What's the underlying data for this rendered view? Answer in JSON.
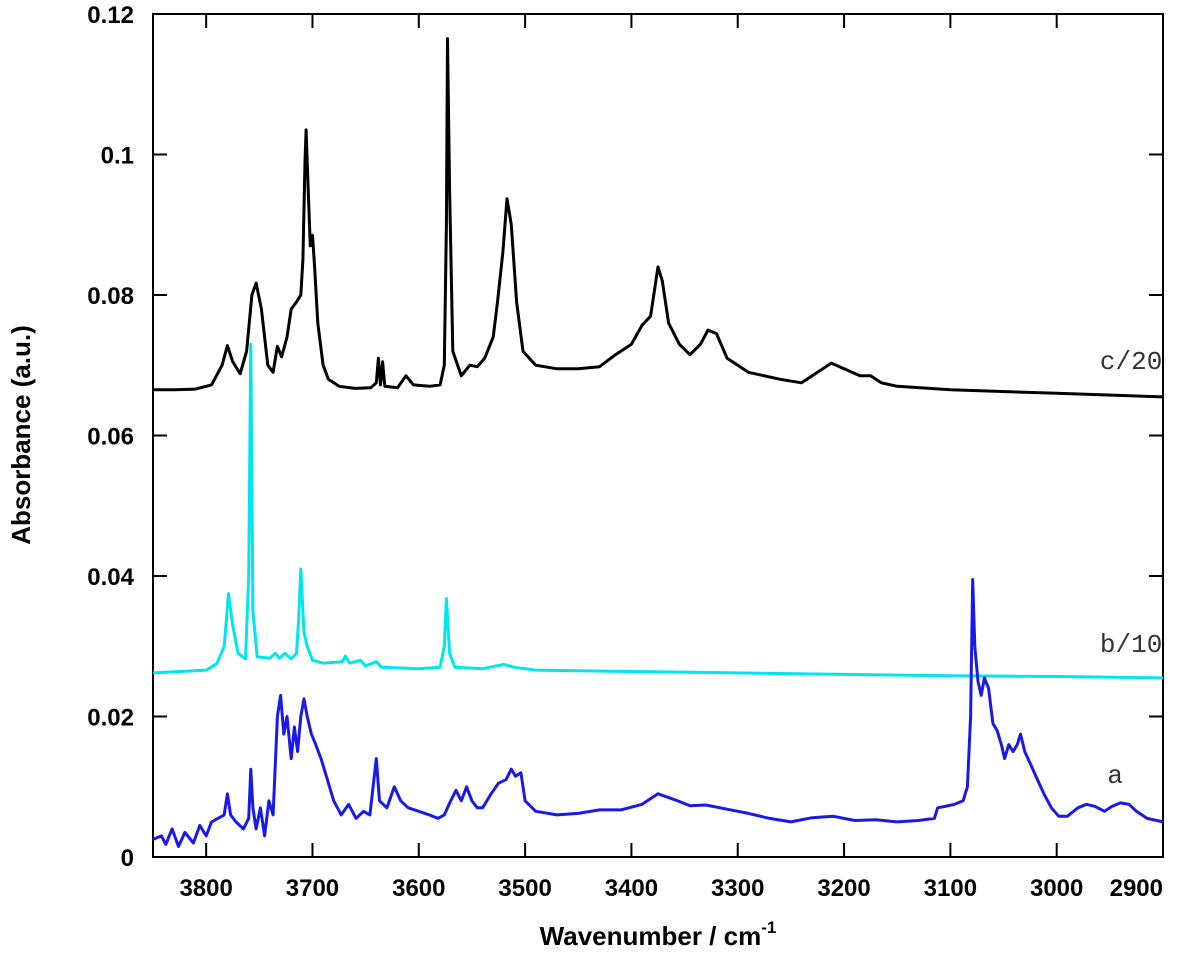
{
  "chart_data": {
    "type": "line",
    "xlabel": "Wavenumber / cm",
    "xlabel_superscript": "-1",
    "ylabel": "Absorbance (a.u.)",
    "xlim": [
      3850,
      2900
    ],
    "ylim": [
      0,
      0.12
    ],
    "x_reversed": true,
    "xticks": [
      3800,
      3700,
      3600,
      3500,
      3400,
      3300,
      3200,
      3100,
      3000,
      2900
    ],
    "xtick_labels": [
      "3800",
      "3700",
      "3600",
      "3500",
      "3400",
      "3300",
      "3200",
      "3100",
      "3000",
      "2900"
    ],
    "yticks": [
      0,
      0.02,
      0.04,
      0.06,
      0.08,
      0.1,
      0.12
    ],
    "ytick_labels": [
      "0",
      "0.02",
      "0.04",
      "0.06",
      "0.08",
      "0.1",
      "0.12"
    ],
    "grid": false,
    "series": [
      {
        "name": "c/20",
        "color": "#000000",
        "label_at": [
          2930,
          0.0695
        ],
        "points": [
          [
            3850,
            0.0665
          ],
          [
            3830,
            0.0665
          ],
          [
            3810,
            0.0666
          ],
          [
            3795,
            0.0672
          ],
          [
            3785,
            0.07
          ],
          [
            3780,
            0.0728
          ],
          [
            3775,
            0.0705
          ],
          [
            3768,
            0.0688
          ],
          [
            3762,
            0.072
          ],
          [
            3757,
            0.08
          ],
          [
            3753,
            0.0817
          ],
          [
            3748,
            0.078
          ],
          [
            3742,
            0.07
          ],
          [
            3737,
            0.069
          ],
          [
            3733,
            0.0727
          ],
          [
            3729,
            0.0712
          ],
          [
            3724,
            0.074
          ],
          [
            3720,
            0.078
          ],
          [
            3715,
            0.079
          ],
          [
            3711,
            0.08
          ],
          [
            3709,
            0.085
          ],
          [
            3707,
            0.099
          ],
          [
            3706,
            0.1035
          ],
          [
            3704,
            0.095
          ],
          [
            3702,
            0.087
          ],
          [
            3700,
            0.0885
          ],
          [
            3698,
            0.084
          ],
          [
            3695,
            0.076
          ],
          [
            3690,
            0.07
          ],
          [
            3685,
            0.068
          ],
          [
            3675,
            0.067
          ],
          [
            3660,
            0.0667
          ],
          [
            3645,
            0.0668
          ],
          [
            3640,
            0.0675
          ],
          [
            3638,
            0.071
          ],
          [
            3636,
            0.0672
          ],
          [
            3634,
            0.0705
          ],
          [
            3632,
            0.067
          ],
          [
            3620,
            0.0668
          ],
          [
            3612,
            0.0685
          ],
          [
            3605,
            0.0672
          ],
          [
            3590,
            0.067
          ],
          [
            3580,
            0.0672
          ],
          [
            3576,
            0.07
          ],
          [
            3574,
            0.09
          ],
          [
            3573,
            0.1165
          ],
          [
            3571,
            0.095
          ],
          [
            3568,
            0.072
          ],
          [
            3560,
            0.0685
          ],
          [
            3552,
            0.07
          ],
          [
            3545,
            0.0698
          ],
          [
            3538,
            0.071
          ],
          [
            3530,
            0.074
          ],
          [
            3526,
            0.079
          ],
          [
            3521,
            0.086
          ],
          [
            3517,
            0.0937
          ],
          [
            3513,
            0.09
          ],
          [
            3508,
            0.079
          ],
          [
            3502,
            0.072
          ],
          [
            3490,
            0.07
          ],
          [
            3470,
            0.0695
          ],
          [
            3450,
            0.0695
          ],
          [
            3430,
            0.0698
          ],
          [
            3415,
            0.0715
          ],
          [
            3400,
            0.073
          ],
          [
            3390,
            0.0757
          ],
          [
            3382,
            0.077
          ],
          [
            3375,
            0.084
          ],
          [
            3371,
            0.082
          ],
          [
            3365,
            0.076
          ],
          [
            3355,
            0.073
          ],
          [
            3345,
            0.0715
          ],
          [
            3335,
            0.073
          ],
          [
            3328,
            0.075
          ],
          [
            3320,
            0.0745
          ],
          [
            3310,
            0.071
          ],
          [
            3290,
            0.069
          ],
          [
            3260,
            0.068
          ],
          [
            3240,
            0.0675
          ],
          [
            3225,
            0.069
          ],
          [
            3212,
            0.0703
          ],
          [
            3200,
            0.0695
          ],
          [
            3185,
            0.0685
          ],
          [
            3175,
            0.0685
          ],
          [
            3165,
            0.0675
          ],
          [
            3150,
            0.067
          ],
          [
            3100,
            0.0665
          ],
          [
            3000,
            0.066
          ],
          [
            2900,
            0.0655
          ]
        ]
      },
      {
        "name": "b/10",
        "color": "#00e5ee",
        "label_at": [
          2930,
          0.0292
        ],
        "points": [
          [
            3850,
            0.0262
          ],
          [
            3800,
            0.0266
          ],
          [
            3790,
            0.0275
          ],
          [
            3783,
            0.03
          ],
          [
            3779,
            0.0375
          ],
          [
            3775,
            0.033
          ],
          [
            3770,
            0.029
          ],
          [
            3763,
            0.0282
          ],
          [
            3760,
            0.04
          ],
          [
            3758,
            0.073
          ],
          [
            3756,
            0.035
          ],
          [
            3752,
            0.0285
          ],
          [
            3740,
            0.0283
          ],
          [
            3735,
            0.029
          ],
          [
            3731,
            0.0283
          ],
          [
            3726,
            0.029
          ],
          [
            3720,
            0.0282
          ],
          [
            3715,
            0.029
          ],
          [
            3713,
            0.034
          ],
          [
            3711,
            0.041
          ],
          [
            3708,
            0.032
          ],
          [
            3705,
            0.03
          ],
          [
            3700,
            0.028
          ],
          [
            3690,
            0.0276
          ],
          [
            3672,
            0.0278
          ],
          [
            3669,
            0.0286
          ],
          [
            3665,
            0.0276
          ],
          [
            3655,
            0.028
          ],
          [
            3650,
            0.0272
          ],
          [
            3640,
            0.0278
          ],
          [
            3635,
            0.027
          ],
          [
            3600,
            0.0268
          ],
          [
            3580,
            0.027
          ],
          [
            3576,
            0.03
          ],
          [
            3574,
            0.0368
          ],
          [
            3571,
            0.029
          ],
          [
            3566,
            0.027
          ],
          [
            3540,
            0.0268
          ],
          [
            3520,
            0.0274
          ],
          [
            3510,
            0.027
          ],
          [
            3490,
            0.0266
          ],
          [
            3400,
            0.0264
          ],
          [
            3300,
            0.0262
          ],
          [
            3200,
            0.026
          ],
          [
            3100,
            0.0258
          ],
          [
            3000,
            0.0257
          ],
          [
            2900,
            0.0255
          ]
        ]
      },
      {
        "name": "a",
        "color": "#1a1ae6",
        "label_at": [
          2945,
          0.0105
        ],
        "points": [
          [
            3850,
            0.0025
          ],
          [
            3842,
            0.003
          ],
          [
            3838,
            0.0018
          ],
          [
            3832,
            0.004
          ],
          [
            3826,
            0.0015
          ],
          [
            3820,
            0.0035
          ],
          [
            3812,
            0.002
          ],
          [
            3806,
            0.0045
          ],
          [
            3800,
            0.003
          ],
          [
            3795,
            0.005
          ],
          [
            3789,
            0.0055
          ],
          [
            3783,
            0.006
          ],
          [
            3780,
            0.009
          ],
          [
            3777,
            0.006
          ],
          [
            3772,
            0.005
          ],
          [
            3765,
            0.004
          ],
          [
            3760,
            0.0055
          ],
          [
            3758,
            0.0125
          ],
          [
            3756,
            0.007
          ],
          [
            3753,
            0.004
          ],
          [
            3749,
            0.007
          ],
          [
            3745,
            0.003
          ],
          [
            3741,
            0.008
          ],
          [
            3737,
            0.006
          ],
          [
            3733,
            0.02
          ],
          [
            3730,
            0.023
          ],
          [
            3727,
            0.0175
          ],
          [
            3724,
            0.02
          ],
          [
            3720,
            0.014
          ],
          [
            3717,
            0.0185
          ],
          [
            3714,
            0.015
          ],
          [
            3711,
            0.02
          ],
          [
            3708,
            0.0225
          ],
          [
            3705,
            0.02
          ],
          [
            3701,
            0.0175
          ],
          [
            3697,
            0.016
          ],
          [
            3692,
            0.014
          ],
          [
            3686,
            0.011
          ],
          [
            3680,
            0.008
          ],
          [
            3673,
            0.006
          ],
          [
            3666,
            0.0075
          ],
          [
            3659,
            0.0055
          ],
          [
            3652,
            0.0065
          ],
          [
            3646,
            0.006
          ],
          [
            3640,
            0.014
          ],
          [
            3637,
            0.008
          ],
          [
            3630,
            0.007
          ],
          [
            3623,
            0.01
          ],
          [
            3617,
            0.008
          ],
          [
            3610,
            0.007
          ],
          [
            3600,
            0.0065
          ],
          [
            3590,
            0.006
          ],
          [
            3582,
            0.0055
          ],
          [
            3576,
            0.006
          ],
          [
            3570,
            0.008
          ],
          [
            3565,
            0.0095
          ],
          [
            3560,
            0.008
          ],
          [
            3555,
            0.01
          ],
          [
            3550,
            0.008
          ],
          [
            3545,
            0.007
          ],
          [
            3540,
            0.007
          ],
          [
            3532,
            0.009
          ],
          [
            3525,
            0.0105
          ],
          [
            3518,
            0.011
          ],
          [
            3513,
            0.0125
          ],
          [
            3509,
            0.0115
          ],
          [
            3504,
            0.012
          ],
          [
            3500,
            0.008
          ],
          [
            3490,
            0.0065
          ],
          [
            3470,
            0.006
          ],
          [
            3450,
            0.0062
          ],
          [
            3430,
            0.0067
          ],
          [
            3410,
            0.0067
          ],
          [
            3390,
            0.0075
          ],
          [
            3375,
            0.009
          ],
          [
            3360,
            0.0082
          ],
          [
            3345,
            0.0073
          ],
          [
            3330,
            0.0074
          ],
          [
            3310,
            0.0068
          ],
          [
            3290,
            0.0062
          ],
          [
            3270,
            0.0055
          ],
          [
            3250,
            0.005
          ],
          [
            3230,
            0.0056
          ],
          [
            3210,
            0.0058
          ],
          [
            3190,
            0.0052
          ],
          [
            3170,
            0.0053
          ],
          [
            3150,
            0.005
          ],
          [
            3130,
            0.0052
          ],
          [
            3115,
            0.0055
          ],
          [
            3112,
            0.007
          ],
          [
            3105,
            0.0072
          ],
          [
            3096,
            0.0075
          ],
          [
            3088,
            0.008
          ],
          [
            3084,
            0.01
          ],
          [
            3081,
            0.02
          ],
          [
            3079,
            0.0395
          ],
          [
            3077,
            0.03
          ],
          [
            3074,
            0.025
          ],
          [
            3071,
            0.023
          ],
          [
            3068,
            0.0255
          ],
          [
            3064,
            0.024
          ],
          [
            3060,
            0.019
          ],
          [
            3056,
            0.018
          ],
          [
            3052,
            0.016
          ],
          [
            3049,
            0.014
          ],
          [
            3045,
            0.016
          ],
          [
            3041,
            0.015
          ],
          [
            3037,
            0.016
          ],
          [
            3034,
            0.0175
          ],
          [
            3030,
            0.015
          ],
          [
            3024,
            0.013
          ],
          [
            3018,
            0.011
          ],
          [
            3012,
            0.009
          ],
          [
            3005,
            0.007
          ],
          [
            2998,
            0.0058
          ],
          [
            2990,
            0.0058
          ],
          [
            2980,
            0.007
          ],
          [
            2972,
            0.0075
          ],
          [
            2964,
            0.0072
          ],
          [
            2955,
            0.0065
          ],
          [
            2948,
            0.0072
          ],
          [
            2940,
            0.0077
          ],
          [
            2932,
            0.0075
          ],
          [
            2925,
            0.0065
          ],
          [
            2915,
            0.0055
          ],
          [
            2900,
            0.005
          ]
        ]
      }
    ]
  }
}
